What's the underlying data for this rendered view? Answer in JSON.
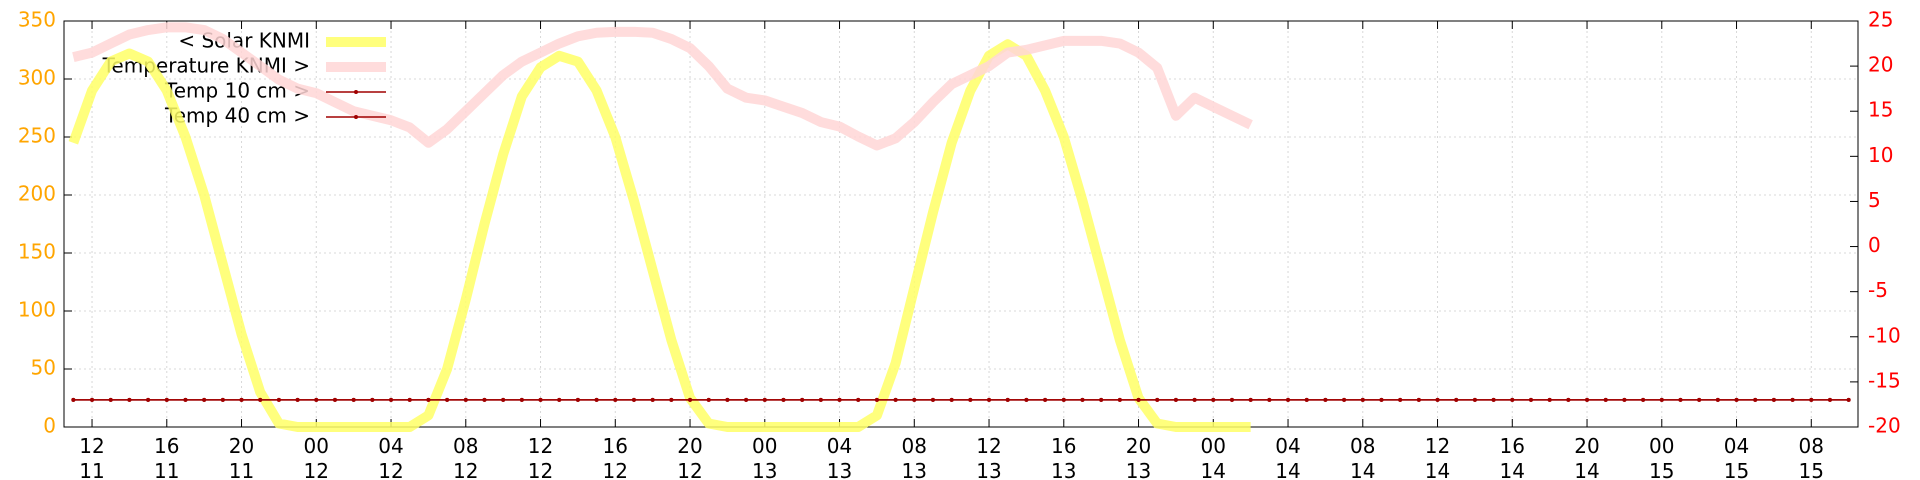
{
  "chart_data": {
    "type": "line",
    "xlim": [
      10.5,
      106.5
    ],
    "xticks": [
      {
        "value": 12,
        "label": "12\n11"
      },
      {
        "value": 16,
        "label": "16\n11"
      },
      {
        "value": 20,
        "label": "20\n11"
      },
      {
        "value": 24,
        "label": "00\n12"
      },
      {
        "value": 28,
        "label": "04\n12"
      },
      {
        "value": 32,
        "label": "08\n12"
      },
      {
        "value": 36,
        "label": "12\n12"
      },
      {
        "value": 40,
        "label": "16\n12"
      },
      {
        "value": 44,
        "label": "20\n12"
      },
      {
        "value": 48,
        "label": "00\n13"
      },
      {
        "value": 52,
        "label": "04\n13"
      },
      {
        "value": 56,
        "label": "08\n13"
      },
      {
        "value": 60,
        "label": "12\n13"
      },
      {
        "value": 64,
        "label": "16\n13"
      },
      {
        "value": 68,
        "label": "20\n13"
      },
      {
        "value": 72,
        "label": "00\n14"
      },
      {
        "value": 76,
        "label": "04\n14"
      },
      {
        "value": 80,
        "label": "08\n14"
      },
      {
        "value": 84,
        "label": "12\n14"
      },
      {
        "value": 88,
        "label": "16\n14"
      },
      {
        "value": 92,
        "label": "20\n14"
      },
      {
        "value": 96,
        "label": "00\n15"
      },
      {
        "value": 100,
        "label": "04\n15"
      },
      {
        "value": 104,
        "label": "08\n15"
      }
    ],
    "ylim": [
      0,
      350
    ],
    "yticks": [
      0,
      50,
      100,
      150,
      200,
      250,
      300,
      350
    ],
    "y2lim": [
      -20,
      25
    ],
    "y2ticks": [
      -20,
      -15,
      -10,
      -5,
      0,
      5,
      10,
      15,
      20,
      25
    ],
    "y_color": "#ffa500",
    "y2_color": "#ff0000",
    "grid": true,
    "legend": "top-left",
    "series": [
      {
        "name": "< Solar KNMI",
        "color": "#ffff66",
        "width": 10,
        "x": [
          11,
          12,
          13,
          14,
          15,
          16,
          17,
          18,
          19,
          20,
          21,
          22,
          23,
          24,
          25,
          26,
          27,
          28,
          29,
          30,
          31,
          32,
          33,
          34,
          35,
          36,
          37,
          38,
          39,
          40,
          41,
          42,
          43,
          44,
          45,
          46,
          47,
          48,
          49,
          50,
          51,
          52,
          53,
          54,
          55,
          56,
          57,
          58,
          59,
          60,
          61,
          62,
          63,
          64,
          65,
          66,
          67,
          68,
          69,
          70,
          71,
          72,
          73,
          74
        ],
        "values": [
          245,
          290,
          315,
          322,
          315,
          290,
          250,
          200,
          140,
          80,
          30,
          3,
          0,
          0,
          0,
          0,
          0,
          0,
          0,
          10,
          50,
          110,
          175,
          235,
          285,
          310,
          320,
          315,
          290,
          250,
          195,
          135,
          75,
          25,
          3,
          0,
          0,
          0,
          0,
          0,
          0,
          0,
          0,
          10,
          55,
          120,
          185,
          245,
          290,
          320,
          330,
          320,
          290,
          250,
          195,
          135,
          75,
          25,
          3,
          0,
          0,
          0,
          0,
          0
        ]
      },
      {
        "name": "Temperature KNMI >",
        "color": "#ffd6d6",
        "width": 10,
        "axis": "y2",
        "x": [
          11,
          12,
          13,
          14,
          15,
          16,
          17,
          18,
          19,
          20,
          21,
          22,
          23,
          24,
          25,
          26,
          27,
          28,
          29,
          30,
          31,
          32,
          33,
          34,
          35,
          36,
          37,
          38,
          39,
          40,
          41,
          42,
          43,
          44,
          45,
          46,
          47,
          48,
          49,
          50,
          51,
          52,
          53,
          54,
          55,
          56,
          57,
          58,
          59,
          60,
          61,
          62,
          63,
          64,
          65,
          66,
          67,
          68,
          69,
          70,
          71,
          72,
          73,
          74
        ],
        "values": [
          21,
          21.5,
          22.5,
          23.5,
          24,
          24.3,
          24.3,
          24,
          23,
          21.5,
          20,
          18.5,
          17.5,
          17,
          16,
          15,
          14.5,
          14,
          13.2,
          11.5,
          13,
          15,
          17,
          19,
          20.5,
          21.5,
          22.5,
          23.3,
          23.7,
          23.8,
          23.8,
          23.7,
          23,
          22,
          20,
          17.5,
          16.5,
          16.2,
          15.5,
          14.8,
          13.8,
          13.3,
          12.2,
          11.2,
          12,
          13.8,
          16,
          18,
          19,
          20,
          21.5,
          21.8,
          22.3,
          22.8,
          22.8,
          22.8,
          22.5,
          21.5,
          19.8,
          14.5,
          16.5,
          15.5,
          14.5,
          13.5
        ]
      },
      {
        "name": "Temp 10 cm >",
        "color": "#a00000",
        "width": 1.5,
        "axis": "y2",
        "markers": true,
        "x": [
          11,
          12,
          13,
          14,
          15,
          16,
          17,
          18,
          19,
          20,
          21,
          22,
          23,
          24,
          25,
          26,
          27,
          28,
          29,
          30,
          31,
          32,
          33,
          34,
          35,
          36,
          37,
          38,
          39,
          40,
          41,
          42,
          43,
          44,
          45,
          46,
          47,
          48,
          49,
          50,
          51,
          52,
          53,
          54,
          55,
          56,
          57,
          58,
          59,
          60,
          61,
          62,
          63,
          64,
          65,
          66,
          67,
          68,
          69,
          70,
          71,
          72,
          73,
          74,
          75,
          76,
          77,
          78,
          79,
          80,
          81,
          82,
          83,
          84,
          85,
          86,
          87,
          88,
          89,
          90,
          91,
          92,
          93,
          94,
          95,
          96,
          97,
          98,
          99,
          100,
          101,
          102,
          103,
          104,
          105,
          106
        ],
        "values": [
          -17,
          -17,
          -17,
          -17,
          -17,
          -17,
          -17,
          -17,
          -17,
          -17,
          -17,
          -17,
          -17,
          -17,
          -17,
          -17,
          -17,
          -17,
          -17,
          -17,
          -17,
          -17,
          -17,
          -17,
          -17,
          -17,
          -17,
          -17,
          -17,
          -17,
          -17,
          -17,
          -17,
          -17,
          -17,
          -17,
          -17,
          -17,
          -17,
          -17,
          -17,
          -17,
          -17,
          -17,
          -17,
          -17,
          -17,
          -17,
          -17,
          -17,
          -17,
          -17,
          -17,
          -17,
          -17,
          -17,
          -17,
          -17,
          -17,
          -17,
          -17,
          -17,
          -17,
          -17,
          -17,
          -17,
          -17,
          -17,
          -17,
          -17,
          -17,
          -17,
          -17,
          -17,
          -17,
          -17,
          -17,
          -17,
          -17,
          -17,
          -17,
          -17,
          -17,
          -17,
          -17,
          -17,
          -17,
          -17,
          -17,
          -17,
          -17,
          -17,
          -17,
          -17,
          -17,
          -17
        ]
      },
      {
        "name": "Temp 40 cm >",
        "color": "#a00000",
        "width": 1.5,
        "axis": "y2",
        "markers": true,
        "x": [
          11,
          12,
          13,
          14,
          15,
          16,
          17,
          18,
          19,
          20,
          21,
          22,
          23,
          24,
          25,
          26,
          27,
          28,
          29,
          30,
          31,
          32,
          33,
          34,
          35,
          36,
          37,
          38,
          39,
          40,
          41,
          42,
          43,
          44,
          45,
          46,
          47,
          48,
          49,
          50,
          51,
          52,
          53,
          54,
          55,
          56,
          57,
          58,
          59,
          60,
          61,
          62,
          63,
          64,
          65,
          66,
          67,
          68,
          69,
          70,
          71,
          72,
          73,
          74,
          75,
          76,
          77,
          78,
          79,
          80,
          81,
          82,
          83,
          84,
          85,
          86,
          87,
          88,
          89,
          90,
          91,
          92,
          93,
          94,
          95,
          96,
          97,
          98,
          99,
          100,
          101,
          102,
          103,
          104,
          105,
          106
        ],
        "values": [
          -17,
          -17,
          -17,
          -17,
          -17,
          -17,
          -17,
          -17,
          -17,
          -17,
          -17,
          -17,
          -17,
          -17,
          -17,
          -17,
          -17,
          -17,
          -17,
          -17,
          -17,
          -17,
          -17,
          -17,
          -17,
          -17,
          -17,
          -17,
          -17,
          -17,
          -17,
          -17,
          -17,
          -17,
          -17,
          -17,
          -17,
          -17,
          -17,
          -17,
          -17,
          -17,
          -17,
          -17,
          -17,
          -17,
          -17,
          -17,
          -17,
          -17,
          -17,
          -17,
          -17,
          -17,
          -17,
          -17,
          -17,
          -17,
          -17,
          -17,
          -17,
          -17,
          -17,
          -17,
          -17,
          -17,
          -17,
          -17,
          -17,
          -17,
          -17,
          -17,
          -17,
          -17,
          -17,
          -17,
          -17,
          -17,
          -17,
          -17,
          -17,
          -17,
          -17,
          -17,
          -17,
          -17,
          -17,
          -17,
          -17,
          -17,
          -17,
          -17,
          -17,
          -17,
          -17,
          -17
        ]
      }
    ]
  }
}
